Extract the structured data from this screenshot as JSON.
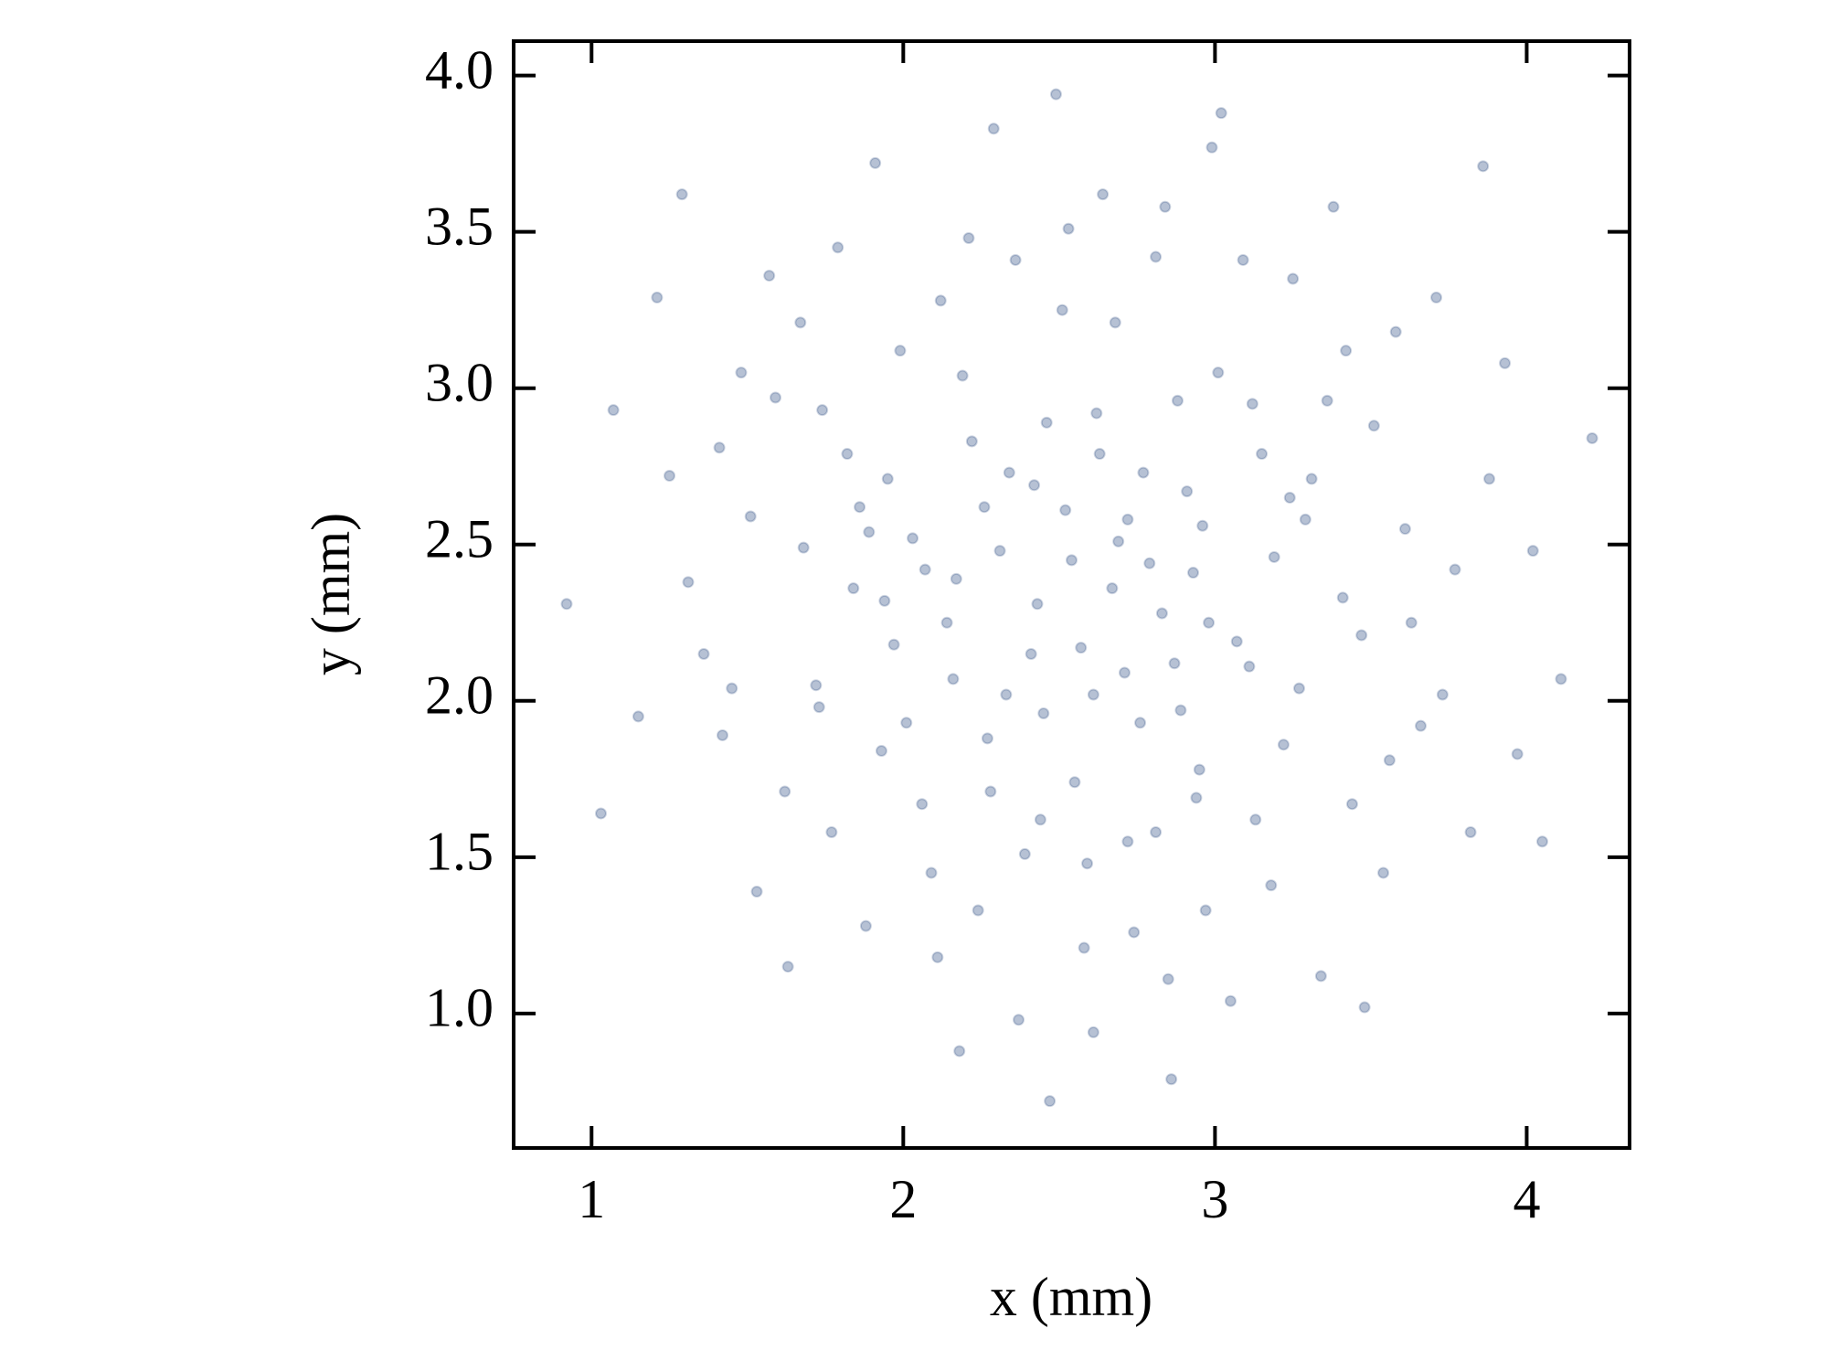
{
  "chart_data": {
    "type": "scatter",
    "x_label": "x (mm)",
    "y_label": "y (mm)",
    "color": "#0d3270",
    "xlim": [
      0.75,
      4.33
    ],
    "ylim": [
      0.57,
      4.11
    ],
    "xticks": [
      1,
      2,
      3,
      4
    ],
    "yticks": [
      {
        "value": 1,
        "label": "1.0"
      },
      {
        "value": 1.5,
        "label": "1.5"
      },
      {
        "value": 2,
        "label": "2.0"
      },
      {
        "value": 2.5,
        "label": "2.5"
      },
      {
        "value": 3,
        "label": "3.0"
      },
      {
        "value": 3.5,
        "label": "3.5"
      },
      {
        "value": 4,
        "label": "4.0"
      }
    ],
    "x": [
      2.31,
      2.87,
      1.95,
      3.12,
      2.44,
      2.68,
      1.72,
      3.41,
      2.09,
      2.95,
      2.52,
      1.48,
      3.66,
      2.21,
      2.79,
      1.88,
      3.25,
      2.61,
      1.31,
      3.88,
      2.37,
      2.99,
      2.14,
      2.72,
      1.62,
      3.51,
      2.46,
      2.83,
      1.99,
      3.18,
      2.58,
      1.41,
      3.73,
      2.27,
      2.91,
      1.79,
      3.34,
      2.64,
      2.03,
      3.07,
      1.15,
      4.02,
      2.41,
      2.76,
      1.84,
      3.29,
      2.18,
      2.97,
      1.57,
      3.58,
      2.49,
      2.86,
      1.93,
      3.44,
      2.34,
      2.69,
      1.25,
      3.82,
      2.12,
      3.01,
      1.68,
      3.47,
      2.55,
      2.24,
      3.15,
      1.53,
      3.93,
      2.81,
      1.97,
      3.22,
      2.43,
      2.63,
      1.07,
      4.11,
      2.06,
      2.93,
      1.74,
      3.38,
      2.29,
      3.05,
      1.42,
      3.61,
      2.57,
      2.39,
      2.88,
      1.86,
      3.27,
      2.16,
      2.74,
      1.63,
      3.71,
      2.51,
      2.98,
      1.21,
      3.97,
      2.33,
      2.67,
      1.91,
      3.13,
      2.47,
      2.84,
      2.01,
      3.54,
      1.36,
      3.31,
      2.26,
      2.71,
      1.77,
      3.09,
      2.59,
      0.92,
      4.21,
      2.19,
      2.94,
      1.51,
      3.63,
      2.42,
      2.77,
      1.94,
      3.19,
      2.11,
      3.02,
      1.67,
      3.48,
      2.36,
      2.89,
      1.82,
      3.36,
      2.54,
      2.22,
      2.81,
      1.45,
      3.77,
      2.62,
      2.07,
      3.11,
      1.59,
      3.56,
      2.45,
      2.72,
      1.03,
      4.05,
      2.28,
      2.96,
      1.73,
      3.42,
      2.53,
      2.17,
      2.85,
      1.29,
      3.86,
      2.61,
      1.89,
      3.24
    ],
    "values": [
      2.48,
      2.12,
      2.71,
      2.95,
      1.62,
      3.21,
      2.05,
      2.33,
      1.45,
      1.78,
      2.61,
      3.05,
      1.92,
      3.48,
      2.44,
      1.28,
      3.35,
      2.02,
      2.38,
      2.71,
      0.98,
      3.77,
      2.25,
      1.55,
      1.71,
      2.88,
      2.89,
      2.28,
      3.12,
      1.41,
      1.21,
      2.81,
      2.02,
      1.88,
      2.67,
      3.45,
      1.12,
      3.62,
      2.52,
      2.19,
      1.95,
      2.48,
      2.15,
      1.93,
      2.36,
      2.58,
      0.88,
      1.33,
      3.36,
      3.18,
      3.94,
      0.79,
      1.84,
      1.67,
      2.73,
      2.51,
      2.72,
      1.58,
      3.28,
      3.05,
      2.49,
      2.21,
      1.74,
      1.33,
      2.79,
      1.39,
      3.08,
      3.42,
      2.18,
      1.86,
      2.31,
      2.79,
      2.93,
      2.07,
      1.67,
      2.41,
      2.93,
      3.58,
      3.83,
      1.04,
      1.89,
      2.55,
      2.17,
      1.51,
      2.96,
      2.62,
      2.04,
      2.07,
      1.26,
      1.15,
      3.29,
      3.25,
      2.25,
      3.29,
      1.83,
      2.02,
      2.36,
      3.72,
      1.62,
      0.72,
      3.58,
      1.93,
      1.45,
      2.15,
      2.71,
      2.62,
      2.09,
      1.58,
      3.41,
      1.48,
      2.31,
      2.84,
      3.04,
      1.69,
      2.59,
      2.25,
      2.69,
      2.73,
      2.32,
      2.46,
      1.18,
      3.88,
      3.21,
      1.02,
      3.41,
      1.97,
      2.79,
      2.96,
      2.45,
      2.83,
      1.58,
      2.04,
      2.42,
      2.92,
      2.42,
      2.11,
      2.97,
      1.81,
      1.96,
      2.58,
      1.64,
      1.55,
      1.71,
      2.56,
      1.98,
      3.12,
      3.51,
      2.39,
      1.11,
      3.62,
      3.71,
      0.94,
      2.54,
      2.65
    ]
  }
}
